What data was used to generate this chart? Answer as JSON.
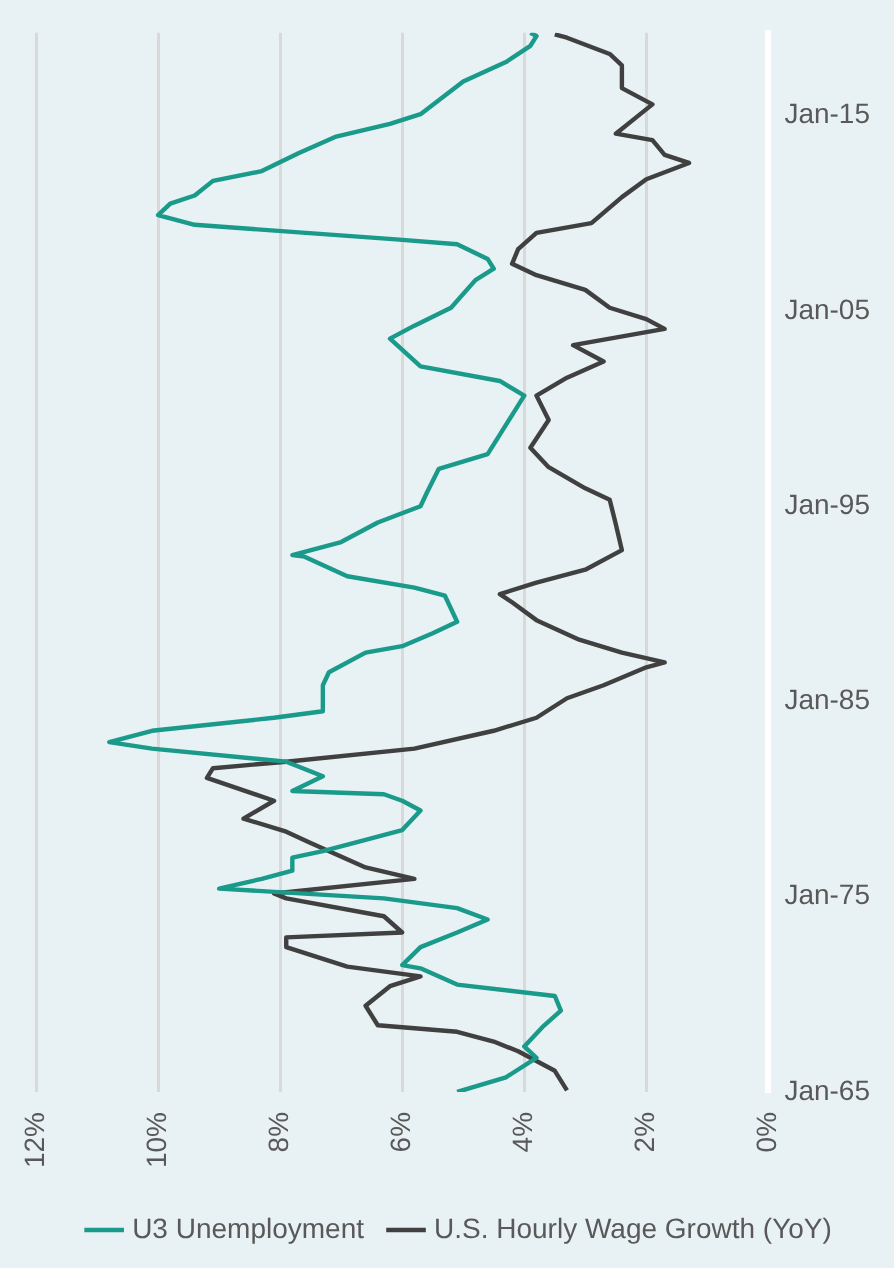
{
  "chart_data": {
    "type": "line",
    "orientation": "horizontal",
    "legend": "bottom",
    "grid": "x",
    "marker": "none",
    "line_style": "solid",
    "ylim": [
      "1965-01",
      "2019-04"
    ],
    "yticks": [
      {
        "value": "1965-01",
        "label": "Jan-65"
      },
      {
        "value": "1975-01",
        "label": "Jan-75"
      },
      {
        "value": "1985-01",
        "label": "Jan-85"
      },
      {
        "value": "1995-01",
        "label": "Jan-95"
      },
      {
        "value": "2005-01",
        "label": "Jan-05"
      },
      {
        "value": "2015-01",
        "label": "Jan-15"
      }
    ],
    "xlim": [
      12,
      0
    ],
    "xticks": [
      {
        "value": 0,
        "label": "0%"
      },
      {
        "value": 2,
        "label": "2%"
      },
      {
        "value": 4,
        "label": "4%"
      },
      {
        "value": 6,
        "label": "6%"
      },
      {
        "value": 8,
        "label": "8%"
      },
      {
        "value": 10,
        "label": "10%"
      },
      {
        "value": 12,
        "label": "12%"
      }
    ],
    "series": [
      {
        "name": "U3 Unemployment",
        "color": "#1a9a8a",
        "x": [
          "1965-01",
          "1965-10",
          "1966-10",
          "1967-05",
          "1968-05",
          "1969-03",
          "1969-12",
          "1970-07",
          "1971-05",
          "1971-07",
          "1972-06",
          "1973-03",
          "1973-11",
          "1974-06",
          "1974-12",
          "1975-06",
          "1975-12",
          "1976-05",
          "1977-01",
          "1977-05",
          "1977-12",
          "1978-06",
          "1979-06",
          "1979-12",
          "1980-04",
          "1980-06",
          "1981-03",
          "1981-12",
          "1982-08",
          "1982-12",
          "1983-07",
          "1984-03",
          "1984-07",
          "1985-11",
          "1986-07",
          "1987-07",
          "1987-11",
          "1988-07",
          "1989-02",
          "1990-06",
          "1990-11",
          "1991-06",
          "1992-06",
          "1992-07",
          "1993-03",
          "1994-03",
          "1995-01",
          "1995-09",
          "1996-12",
          "1997-09",
          "1998-09",
          "2000-03",
          "2000-09",
          "2001-06",
          "2002-03",
          "2003-08",
          "2004-04",
          "2005-03",
          "2006-08",
          "2007-03",
          "2007-09",
          "2008-06",
          "2008-09",
          "2009-06",
          "2009-12",
          "2010-07",
          "2010-12",
          "2011-09",
          "2012-03",
          "2013-02",
          "2013-12",
          "2014-08",
          "2015-02",
          "2016-10",
          "2017-10",
          "2018-08",
          "2019-02",
          "2019-04"
        ],
        "values": [
          5.1,
          4.3,
          3.8,
          4.0,
          3.7,
          3.4,
          3.5,
          5.1,
          5.7,
          6.0,
          5.7,
          5.1,
          4.6,
          5.1,
          6.3,
          9.0,
          8.3,
          7.8,
          7.8,
          7.3,
          6.6,
          6.0,
          5.7,
          6.0,
          6.3,
          7.8,
          7.3,
          7.9,
          10.1,
          10.8,
          10.1,
          8.1,
          7.3,
          7.3,
          7.2,
          6.6,
          6.0,
          5.5,
          5.1,
          5.3,
          5.8,
          6.9,
          7.6,
          7.8,
          7.0,
          6.4,
          5.7,
          5.6,
          5.4,
          4.6,
          4.4,
          4.1,
          4.0,
          4.4,
          5.7,
          6.2,
          5.8,
          5.2,
          4.8,
          4.5,
          4.6,
          5.1,
          6.1,
          9.4,
          10.0,
          9.8,
          9.4,
          9.1,
          8.3,
          7.7,
          7.1,
          6.2,
          5.7,
          5.0,
          4.3,
          3.9,
          3.8,
          3.9
        ]
      },
      {
        "name": "U.S. Hourly Wage Growth (YoY)",
        "color": "#404040",
        "x": [
          "1965-02",
          "1966-02",
          "1967-02",
          "1967-08",
          "1968-02",
          "1968-06",
          "1969-06",
          "1970-06",
          "1970-12",
          "1971-06",
          "1972-06",
          "1972-12",
          "1973-03",
          "1974-01",
          "1974-12",
          "1975-03",
          "1975-12",
          "1976-07",
          "1977-10",
          "1978-05",
          "1979-01",
          "1979-12",
          "1981-02",
          "1981-08",
          "1981-12",
          "1982-08",
          "1983-07",
          "1984-03",
          "1985-03",
          "1985-11",
          "1986-10",
          "1987-01",
          "1987-07",
          "1988-03",
          "1989-03",
          "1990-02",
          "1990-07",
          "1991-02",
          "1991-10",
          "1992-10",
          "1994-02",
          "1995-05",
          "1995-12",
          "1997-01",
          "1998-01",
          "1999-06",
          "2000-09",
          "2001-08",
          "2002-06",
          "2003-04",
          "2004-02",
          "2004-08",
          "2005-03",
          "2006-02",
          "2006-11",
          "2007-06",
          "2008-03",
          "2009-01",
          "2009-07",
          "2010-11",
          "2011-10",
          "2012-08",
          "2013-01",
          "2013-10",
          "2014-02",
          "2015-02",
          "2015-08",
          "2016-06",
          "2017-08",
          "2018-03",
          "2019-01",
          "2019-03"
        ],
        "values": [
          3.3,
          3.5,
          4.1,
          4.5,
          5.1,
          6.4,
          6.6,
          6.2,
          5.7,
          6.9,
          7.9,
          7.9,
          6.0,
          6.3,
          7.9,
          8.1,
          5.8,
          6.6,
          7.5,
          7.9,
          8.6,
          8.1,
          9.2,
          9.1,
          7.9,
          5.8,
          4.5,
          3.8,
          3.3,
          2.7,
          2.0,
          1.7,
          2.4,
          3.1,
          3.8,
          4.2,
          4.4,
          3.8,
          3.0,
          2.4,
          2.5,
          2.6,
          3.0,
          3.6,
          3.9,
          3.6,
          3.8,
          3.3,
          2.7,
          3.2,
          1.7,
          2.0,
          2.6,
          3.0,
          3.8,
          4.2,
          4.1,
          3.8,
          2.9,
          2.4,
          2.0,
          1.3,
          1.7,
          1.9,
          2.5,
          2.1,
          1.9,
          2.4,
          2.4,
          2.6,
          3.3,
          3.5
        ]
      }
    ]
  }
}
